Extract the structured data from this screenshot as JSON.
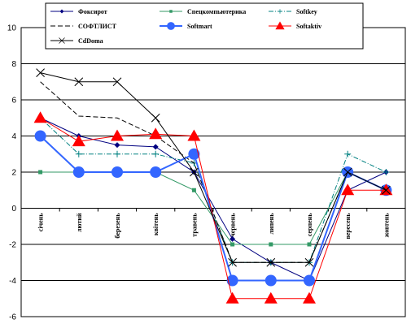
{
  "chart_data": {
    "type": "line",
    "title": "",
    "xlabel": "",
    "ylabel": "",
    "ylim": [
      -6,
      10
    ],
    "yticks": [
      -6,
      -4,
      -2,
      0,
      2,
      4,
      6,
      8,
      10
    ],
    "grid": "horizontal",
    "legend_position": "top",
    "categories": [
      "січень",
      "лютий",
      "березень",
      "квітень",
      "травень",
      "червень",
      "липень",
      "серпень",
      "вересень",
      "жовтень"
    ],
    "series": [
      {
        "name": "Фоксирот",
        "color": "#000080",
        "marker": "diamond",
        "dash": "solid",
        "width": 1,
        "values": [
          5,
          4,
          3.5,
          3.4,
          2,
          -1.7,
          -3,
          -4,
          1,
          2
        ]
      },
      {
        "name": "Спецкомпьютерика",
        "color": "#339966",
        "marker": "square",
        "dash": "solid",
        "width": 1,
        "values": [
          2,
          2,
          2,
          2,
          1,
          -2,
          -2,
          -2,
          2,
          1
        ]
      },
      {
        "name": "Softkey",
        "color": "#008080",
        "marker": "dash-plus",
        "dash": "dashdot",
        "width": 1,
        "values": [
          5,
          3,
          3,
          3,
          2.5,
          -3,
          -3,
          -3,
          3,
          2
        ]
      },
      {
        "name": "СОФТЛИСТ",
        "color": "#000000",
        "marker": "none",
        "dash": "dashed",
        "width": 1,
        "values": [
          7,
          5.1,
          5,
          4,
          2.5,
          -3,
          -3,
          -3,
          2,
          1
        ]
      },
      {
        "name": "Softmart",
        "color": "#3366FF",
        "marker": "circle",
        "dash": "solid",
        "width": 2,
        "values": [
          4,
          2,
          2,
          2,
          3,
          -4,
          -4,
          -4,
          2,
          1
        ]
      },
      {
        "name": "Softaktiv",
        "color": "#FF0000",
        "marker": "triangle",
        "dash": "solid",
        "width": 1,
        "values": [
          5,
          3.7,
          4,
          4.1,
          4,
          -5,
          -5,
          -5,
          1,
          1
        ]
      },
      {
        "name": "CdDoma",
        "color": "#000000",
        "marker": "x",
        "dash": "solid",
        "width": 1,
        "values": [
          7.5,
          7,
          7,
          5,
          2,
          -3,
          -3,
          -3,
          2,
          1
        ]
      }
    ]
  }
}
